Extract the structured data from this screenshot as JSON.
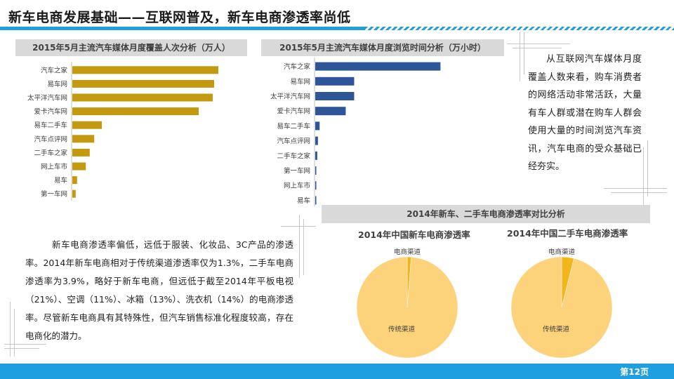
{
  "title": "新车电商发展基础——互联网普及，新车电商渗透率尚低",
  "chart_data": [
    {
      "type": "bar",
      "orientation": "horizontal",
      "title": "2015年5月主流汽车媒体月度覆盖人次分析（万人）",
      "categories": [
        "汽车之家",
        "易车网",
        "太平洋汽车网",
        "爱卡汽车网",
        "易车二手车",
        "汽车点评网",
        "二手车之家",
        "网上车市",
        "易车",
        "第一车网"
      ],
      "values": [
        5200,
        5050,
        5000,
        4500,
        1050,
        780,
        620,
        480,
        170,
        120
      ],
      "xlim": [
        0,
        7000
      ],
      "color": "#c39a0f"
    },
    {
      "type": "bar",
      "orientation": "horizontal",
      "title": "2015年5月主流汽车媒体月度浏览时间分析（万小时）",
      "categories": [
        "汽车之家",
        "易车网",
        "太平洋汽车网",
        "爱卡汽车网",
        "易车二手车",
        "汽车点评网",
        "二手车之家",
        "第一车网",
        "网上车市",
        "易车"
      ],
      "values": [
        3700,
        1150,
        1150,
        900,
        130,
        80,
        60,
        30,
        20,
        15
      ],
      "xlim": [
        0,
        5600
      ],
      "color": "#2e5597"
    },
    {
      "type": "pie",
      "title": "2014年中国新车电商渗透率",
      "labels": [
        "电商渠道",
        "传统渠道"
      ],
      "values": [
        1.3,
        98.7
      ],
      "colors": [
        "#f2b51a",
        "#fcd27a"
      ]
    },
    {
      "type": "pie",
      "title": "2014年中国二手车电商渗透率",
      "labels": [
        "电商渠道",
        "传统渠道"
      ],
      "values": [
        3.9,
        96.1
      ],
      "colors": [
        "#f2b51a",
        "#fcd27a"
      ]
    }
  ],
  "pie_section_title": "2014年新车、二手车电商渗透率对比分析",
  "side_paragraph": "从互联网汽车媒体月度覆盖人数来看，购车消费者的网络活动非常活跃，大量有车人群或潜在购车人群会使用大量的时间浏览汽车资讯，汽车电商的受众基础已经夯实。",
  "body_paragraph": "新车电商渗透率偏低，远低于服装、化妆品、3C产品的渗透率。2014年新车电商相对于传统渠道渗透率仅为1.3%，二手车电商渗透率为3.9%，略好于新车电商，但远低于截至2014年平板电视（21%）、空调（11%）、冰箱（13%）、洗衣机（14%）的电商渗透率。尽管新车电商具有其特殊性，但汽车销售标准化程度较高，存在电商化的潜力。",
  "page_number": "第12页"
}
